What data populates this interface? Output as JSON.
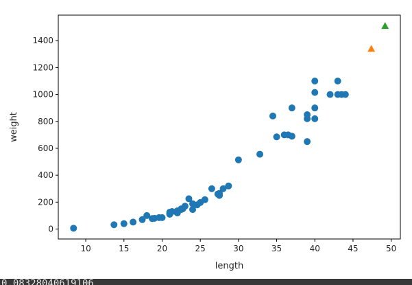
{
  "output_text": "0.08328040619106",
  "chart_data": {
    "type": "scatter",
    "title": "",
    "xlabel": "length",
    "ylabel": "weight",
    "xlim": [
      6.4,
      51.2
    ],
    "ylim": [
      -74,
      1590
    ],
    "xticks": [
      10,
      15,
      20,
      25,
      30,
      35,
      40,
      45,
      50
    ],
    "yticks": [
      0,
      200,
      400,
      600,
      800,
      1000,
      1200,
      1400
    ],
    "grid": false,
    "legend": "none",
    "series": [
      {
        "color": "#1f77b4",
        "marker": "circle",
        "points": [
          [
            8.4,
            5.9
          ],
          [
            13.7,
            32
          ],
          [
            15.0,
            40
          ],
          [
            16.2,
            51.5
          ],
          [
            17.4,
            70
          ],
          [
            18.0,
            100
          ],
          [
            18.7,
            78
          ],
          [
            19.0,
            80
          ],
          [
            19.6,
            85
          ],
          [
            20.0,
            85
          ],
          [
            21.0,
            110
          ],
          [
            21.0,
            115
          ],
          [
            21.0,
            125
          ],
          [
            21.3,
            130
          ],
          [
            22.0,
            120
          ],
          [
            22.0,
            120
          ],
          [
            22.0,
            130
          ],
          [
            22.0,
            135
          ],
          [
            22.0,
            130
          ],
          [
            22.5,
            150
          ],
          [
            22.5,
            145
          ],
          [
            22.7,
            150
          ],
          [
            23.0,
            170
          ],
          [
            23.5,
            225
          ],
          [
            24.0,
            145
          ],
          [
            24.0,
            188
          ],
          [
            24.6,
            180
          ],
          [
            25.0,
            197
          ],
          [
            25.6,
            218
          ],
          [
            26.5,
            300
          ],
          [
            27.3,
            260
          ],
          [
            27.5,
            265
          ],
          [
            27.5,
            250
          ],
          [
            27.5,
            250
          ],
          [
            28.0,
            300
          ],
          [
            28.7,
            320
          ],
          [
            30.0,
            514
          ],
          [
            32.8,
            556
          ],
          [
            34.5,
            840
          ],
          [
            35.0,
            685
          ],
          [
            36.5,
            700
          ],
          [
            36.0,
            700
          ],
          [
            37.0,
            690
          ],
          [
            37.0,
            900
          ],
          [
            39.0,
            650
          ],
          [
            39.0,
            820
          ],
          [
            39.0,
            850
          ],
          [
            40.0,
            900
          ],
          [
            40.0,
            1015
          ],
          [
            40.0,
            820
          ],
          [
            40.0,
            1100
          ],
          [
            42.0,
            1000
          ],
          [
            43.0,
            1100
          ],
          [
            43.0,
            1000
          ],
          [
            43.5,
            1000
          ],
          [
            44.0,
            1000
          ]
        ]
      },
      {
        "color": "#ff7f0e",
        "marker": "triangle",
        "points": [
          [
            47.4,
            1340
          ]
        ]
      },
      {
        "color": "#2ca02c",
        "marker": "triangle",
        "points": [
          [
            49.2,
            1510
          ]
        ]
      }
    ]
  }
}
